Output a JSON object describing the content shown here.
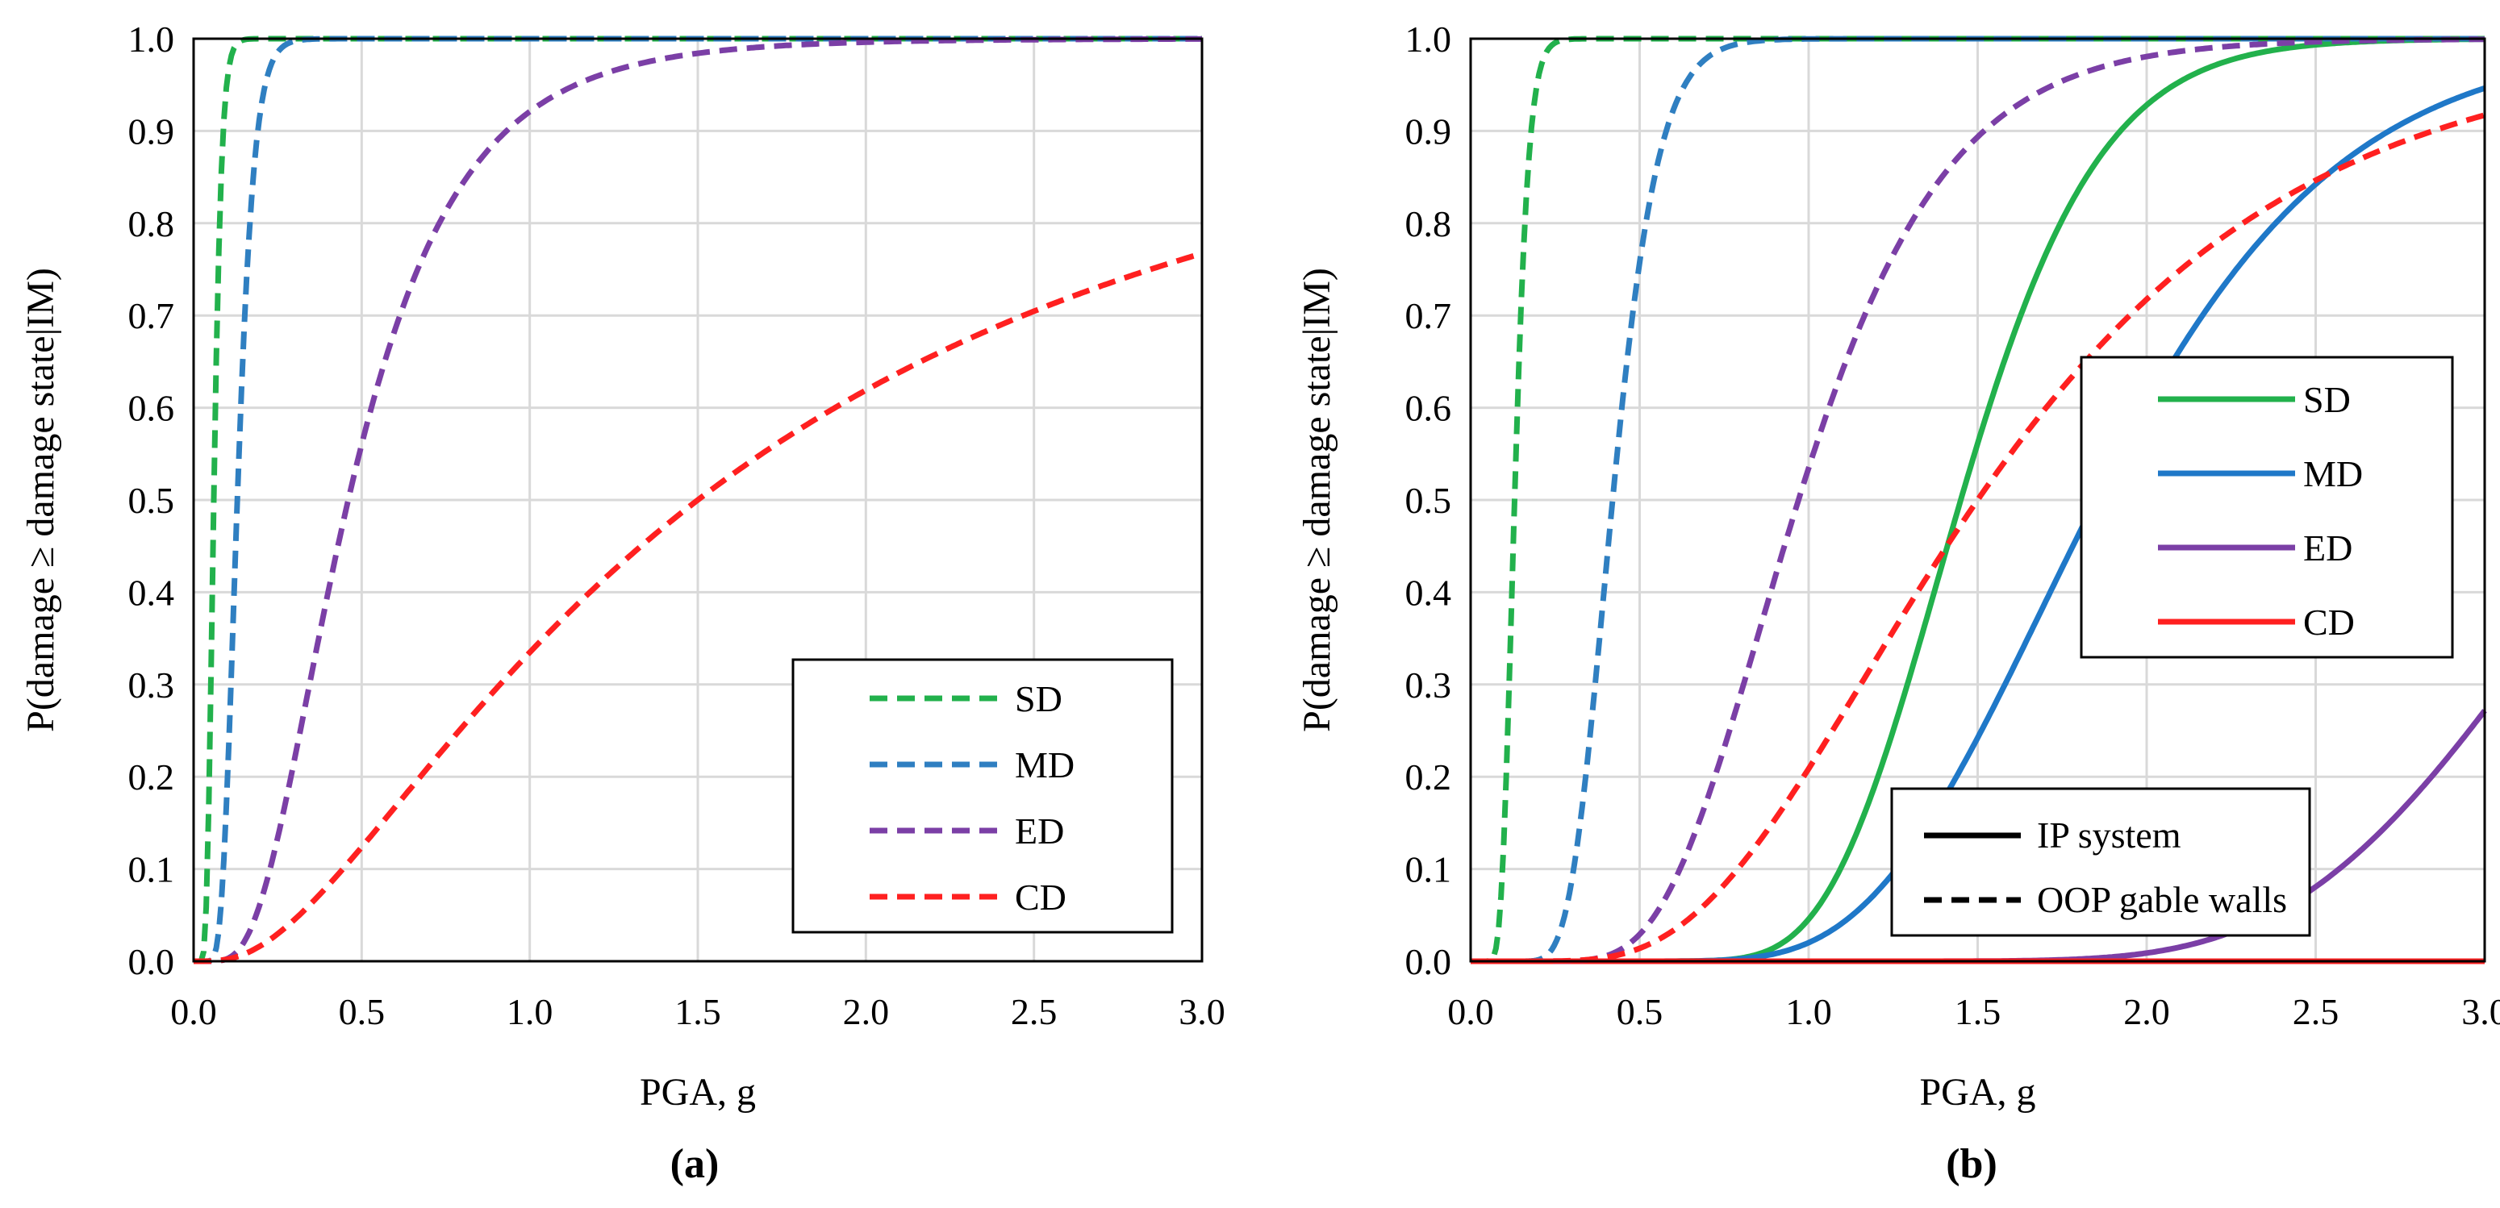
{
  "chart_data": [
    {
      "type": "line",
      "panel_label": "(a)",
      "xlabel": "PGA, g",
      "ylabel": "P(damage ≥ damage state|IM)",
      "xlim": [
        0,
        3
      ],
      "ylim": [
        0,
        1
      ],
      "xticks": [
        "0.0",
        "0.5",
        "1.0",
        "1.5",
        "2.0",
        "2.5",
        "3.0"
      ],
      "yticks": [
        "0.0",
        "0.1",
        "0.2",
        "0.3",
        "0.4",
        "0.5",
        "0.6",
        "0.7",
        "0.8",
        "0.9",
        "1.0"
      ],
      "grid": true,
      "legend_position": "bottom-right",
      "series": [
        {
          "name": "SD",
          "style": "dashed",
          "color": "#22b14c",
          "model": "lognormal CDF",
          "median": 0.06,
          "beta": 0.3
        },
        {
          "name": "MD",
          "style": "dashed",
          "color": "#2f7fc1",
          "model": "lognormal CDF",
          "median": 0.13,
          "beta": 0.3
        },
        {
          "name": "ED",
          "style": "dashed",
          "color": "#7b3fa6",
          "model": "lognormal CDF",
          "median": 0.46,
          "beta": 0.55
        },
        {
          "name": "CD",
          "style": "dashed",
          "color": "#ff2020",
          "model": "lognormal CDF",
          "median": 1.5,
          "beta": 0.95
        }
      ]
    },
    {
      "type": "line",
      "panel_label": "(b)",
      "xlabel": "PGA, g",
      "ylabel": "P(damage ≥ damage state|IM)",
      "xlim": [
        0,
        3
      ],
      "ylim": [
        0,
        1
      ],
      "xticks": [
        "0.0",
        "0.5",
        "1.0",
        "1.5",
        "2.0",
        "2.5",
        "3.0"
      ],
      "yticks": [
        "0.0",
        "0.1",
        "0.2",
        "0.3",
        "0.4",
        "0.5",
        "0.6",
        "0.7",
        "0.8",
        "0.9",
        "1.0"
      ],
      "grid": true,
      "legend_position": "center-right",
      "style_legend_position": "bottom-right",
      "style_legend": [
        {
          "style": "solid",
          "label": "IP system"
        },
        {
          "style": "dashed",
          "label": "OOP gable walls"
        }
      ],
      "series": [
        {
          "name": "SD",
          "style": "solid",
          "color": "#22b14c",
          "model": "lognormal CDF",
          "median": 1.45,
          "beta": 0.22,
          "in_legend": true
        },
        {
          "name": "MD",
          "style": "solid",
          "color": "#1f78c8",
          "model": "lognormal CDF",
          "median": 1.85,
          "beta": 0.3,
          "in_legend": true
        },
        {
          "name": "ED",
          "style": "solid",
          "color": "#7b3fa6",
          "model": "lognormal CDF",
          "median": 3.45,
          "beta": 0.23,
          "in_legend": true
        },
        {
          "name": "CD",
          "style": "solid",
          "color": "#ff2020",
          "model": "lognormal CDF",
          "median": 10.0,
          "beta": 0.2,
          "in_legend": true
        },
        {
          "name": "SD",
          "style": "dashed",
          "color": "#22b14c",
          "model": "lognormal CDF",
          "median": 0.13,
          "beta": 0.25,
          "in_legend": false
        },
        {
          "name": "MD",
          "style": "dashed",
          "color": "#2f7fc1",
          "model": "lognormal CDF",
          "median": 0.42,
          "beta": 0.25,
          "in_legend": false
        },
        {
          "name": "ED",
          "style": "dashed",
          "color": "#7b3fa6",
          "model": "lognormal CDF",
          "median": 0.97,
          "beta": 0.35,
          "in_legend": false
        },
        {
          "name": "CD",
          "style": "dashed",
          "color": "#ff2020",
          "model": "lognormal CDF",
          "median": 1.5,
          "beta": 0.5,
          "in_legend": false
        }
      ]
    }
  ]
}
